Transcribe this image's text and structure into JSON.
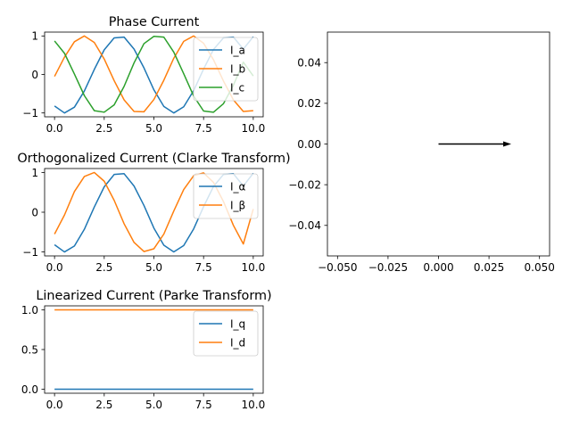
{
  "chart_data": [
    {
      "type": "line",
      "title": "Phase Current",
      "xlabel": "",
      "ylabel": "",
      "xlim": [
        -0.5,
        10.5
      ],
      "ylim": [
        -1.1,
        1.1
      ],
      "xticks": [
        0.0,
        2.5,
        5.0,
        7.5,
        10.0
      ],
      "xtick_labels": [
        "0.0",
        "2.5",
        "5.0",
        "7.5",
        "10.0"
      ],
      "yticks": [
        -1,
        0,
        1
      ],
      "ytick_labels": [
        "−1",
        "0",
        "1"
      ],
      "grid": false,
      "legend_position": "top-right",
      "x": [
        0,
        0.5,
        1,
        1.5,
        2,
        2.5,
        3,
        3.5,
        4,
        4.5,
        5,
        5.5,
        6,
        6.5,
        7,
        7.5,
        8,
        8.5,
        9,
        9.5,
        10
      ],
      "series": [
        {
          "name": "I_a",
          "color": "#1f77b4",
          "values": [
            -0.82,
            -1.0,
            -0.85,
            -0.43,
            0.13,
            0.64,
            0.95,
            0.97,
            0.66,
            0.17,
            -0.4,
            -0.83,
            -1.0,
            -0.84,
            -0.42,
            0.14,
            0.65,
            0.95,
            0.97,
            0.66,
            0.98
          ]
        },
        {
          "name": "I_b",
          "color": "#ff7f0e",
          "values": [
            -0.05,
            0.45,
            0.85,
            1.0,
            0.83,
            0.4,
            -0.16,
            -0.66,
            -0.96,
            -0.97,
            -0.65,
            -0.15,
            0.42,
            0.86,
            1.0,
            0.81,
            0.38,
            -0.17,
            -0.66,
            -0.96,
            -0.94
          ]
        },
        {
          "name": "I_c",
          "color": "#2ca02c",
          "values": [
            0.87,
            0.55,
            0.01,
            -0.55,
            -0.94,
            -0.98,
            -0.79,
            -0.31,
            0.3,
            0.8,
            0.99,
            0.97,
            0.58,
            0.02,
            -0.56,
            -0.95,
            -0.98,
            -0.76,
            -0.28,
            0.32,
            -0.04
          ]
        }
      ]
    },
    {
      "type": "line",
      "title": "Orthogonalized Current (Clarke Transform)",
      "xlabel": "",
      "ylabel": "",
      "xlim": [
        -0.5,
        10.5
      ],
      "ylim": [
        -1.1,
        1.1
      ],
      "xticks": [
        0.0,
        2.5,
        5.0,
        7.5,
        10.0
      ],
      "xtick_labels": [
        "0.0",
        "2.5",
        "5.0",
        "7.5",
        "10.0"
      ],
      "yticks": [
        -1,
        0,
        1
      ],
      "ytick_labels": [
        "−1",
        "0",
        "1"
      ],
      "grid": false,
      "legend_position": "top-right",
      "x": [
        0,
        0.5,
        1,
        1.5,
        2,
        2.5,
        3,
        3.5,
        4,
        4.5,
        5,
        5.5,
        6,
        6.5,
        7,
        7.5,
        8,
        8.5,
        9,
        9.5,
        10
      ],
      "series": [
        {
          "name": "I_α",
          "color": "#1f77b4",
          "values": [
            -0.82,
            -1.0,
            -0.85,
            -0.43,
            0.13,
            0.64,
            0.95,
            0.97,
            0.66,
            0.17,
            -0.4,
            -0.83,
            -1.0,
            -0.84,
            -0.42,
            0.14,
            0.65,
            0.95,
            0.97,
            0.66,
            0.98
          ]
        },
        {
          "name": "I_β",
          "color": "#ff7f0e",
          "values": [
            -0.55,
            -0.07,
            0.52,
            0.9,
            1.0,
            0.78,
            0.3,
            -0.29,
            -0.76,
            -0.99,
            -0.92,
            -0.55,
            0.03,
            0.57,
            0.92,
            0.99,
            0.75,
            0.27,
            -0.33,
            -0.8,
            0.08
          ]
        }
      ]
    },
    {
      "type": "line",
      "title": "Linearized Current (Parke Transform)",
      "xlabel": "",
      "ylabel": "",
      "xlim": [
        -0.5,
        10.5
      ],
      "ylim": [
        -0.05,
        1.05
      ],
      "xticks": [
        0.0,
        2.5,
        5.0,
        7.5,
        10.0
      ],
      "xtick_labels": [
        "0.0",
        "2.5",
        "5.0",
        "7.5",
        "10.0"
      ],
      "yticks": [
        0.0,
        0.5,
        1.0
      ],
      "ytick_labels": [
        "0.0",
        "0.5",
        "1.0"
      ],
      "grid": false,
      "legend_position": "top-right",
      "x": [
        0,
        10
      ],
      "series": [
        {
          "name": "I_q",
          "color": "#1f77b4",
          "values": [
            0.0,
            0.0
          ]
        },
        {
          "name": "I_d",
          "color": "#ff7f0e",
          "values": [
            1.0,
            1.0
          ]
        }
      ]
    },
    {
      "type": "quiver",
      "title": "",
      "xlabel": "",
      "ylabel": "",
      "xlim": [
        -0.055,
        0.055
      ],
      "ylim": [
        -0.055,
        0.055
      ],
      "xticks": [
        -0.05,
        -0.025,
        0.0,
        0.025,
        0.05
      ],
      "xtick_labels": [
        "−0.050",
        "−0.025",
        "0.000",
        "0.025",
        "0.050"
      ],
      "yticks": [
        -0.04,
        -0.02,
        0.0,
        0.02,
        0.04
      ],
      "ytick_labels": [
        "−0.04",
        "−0.02",
        "0.00",
        "0.02",
        "0.04"
      ],
      "grid": false,
      "arrow": {
        "x": 0.0,
        "y": 0.0,
        "dx": 0.036,
        "dy": 0.0,
        "color": "#000000"
      }
    }
  ]
}
